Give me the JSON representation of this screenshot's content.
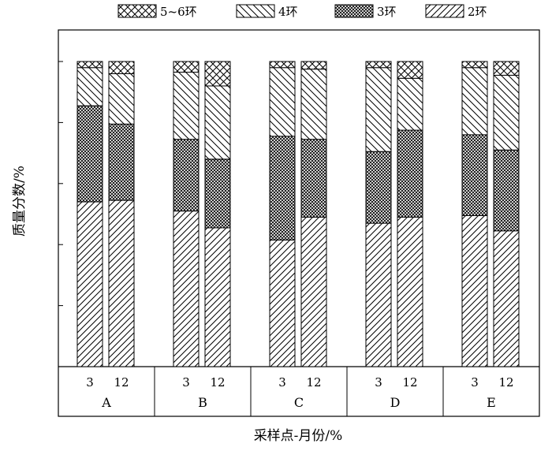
{
  "chart_data": {
    "type": "bar",
    "stacked": true,
    "percent": true,
    "title": "",
    "xlabel": "采样点-月份/%",
    "ylabel": "质量分数/%",
    "ylim": [
      0,
      100
    ],
    "y_tick_labels_shown": false,
    "legend_position": "top",
    "groups": [
      {
        "name": "A",
        "categories": [
          "3",
          "12"
        ]
      },
      {
        "name": "B",
        "categories": [
          "3",
          "12"
        ]
      },
      {
        "name": "C",
        "categories": [
          "3",
          "12"
        ]
      },
      {
        "name": "D",
        "categories": [
          "3",
          "12"
        ]
      },
      {
        "name": "E",
        "categories": [
          "3",
          "12"
        ]
      }
    ],
    "series": [
      {
        "name": "2环",
        "pattern": "diagonal-forward",
        "values": [
          54,
          54.5,
          51,
          45.5,
          41.5,
          49,
          47,
          49,
          49.5,
          44.5
        ]
      },
      {
        "name": "3环",
        "pattern": "crosshatch-dense",
        "values": [
          31.5,
          25,
          23.5,
          22.5,
          34,
          25.5,
          23.5,
          28.5,
          26.5,
          26.5
        ]
      },
      {
        "name": "4环",
        "pattern": "diagonal-backward",
        "values": [
          12.5,
          16.5,
          22,
          24,
          22.5,
          23,
          27.5,
          17,
          22,
          24.5
        ]
      },
      {
        "name": "5~6环",
        "pattern": "crosshatch-open",
        "values": [
          2,
          4,
          3.5,
          8,
          2,
          2.5,
          2,
          5.5,
          2,
          4.5
        ]
      }
    ]
  }
}
